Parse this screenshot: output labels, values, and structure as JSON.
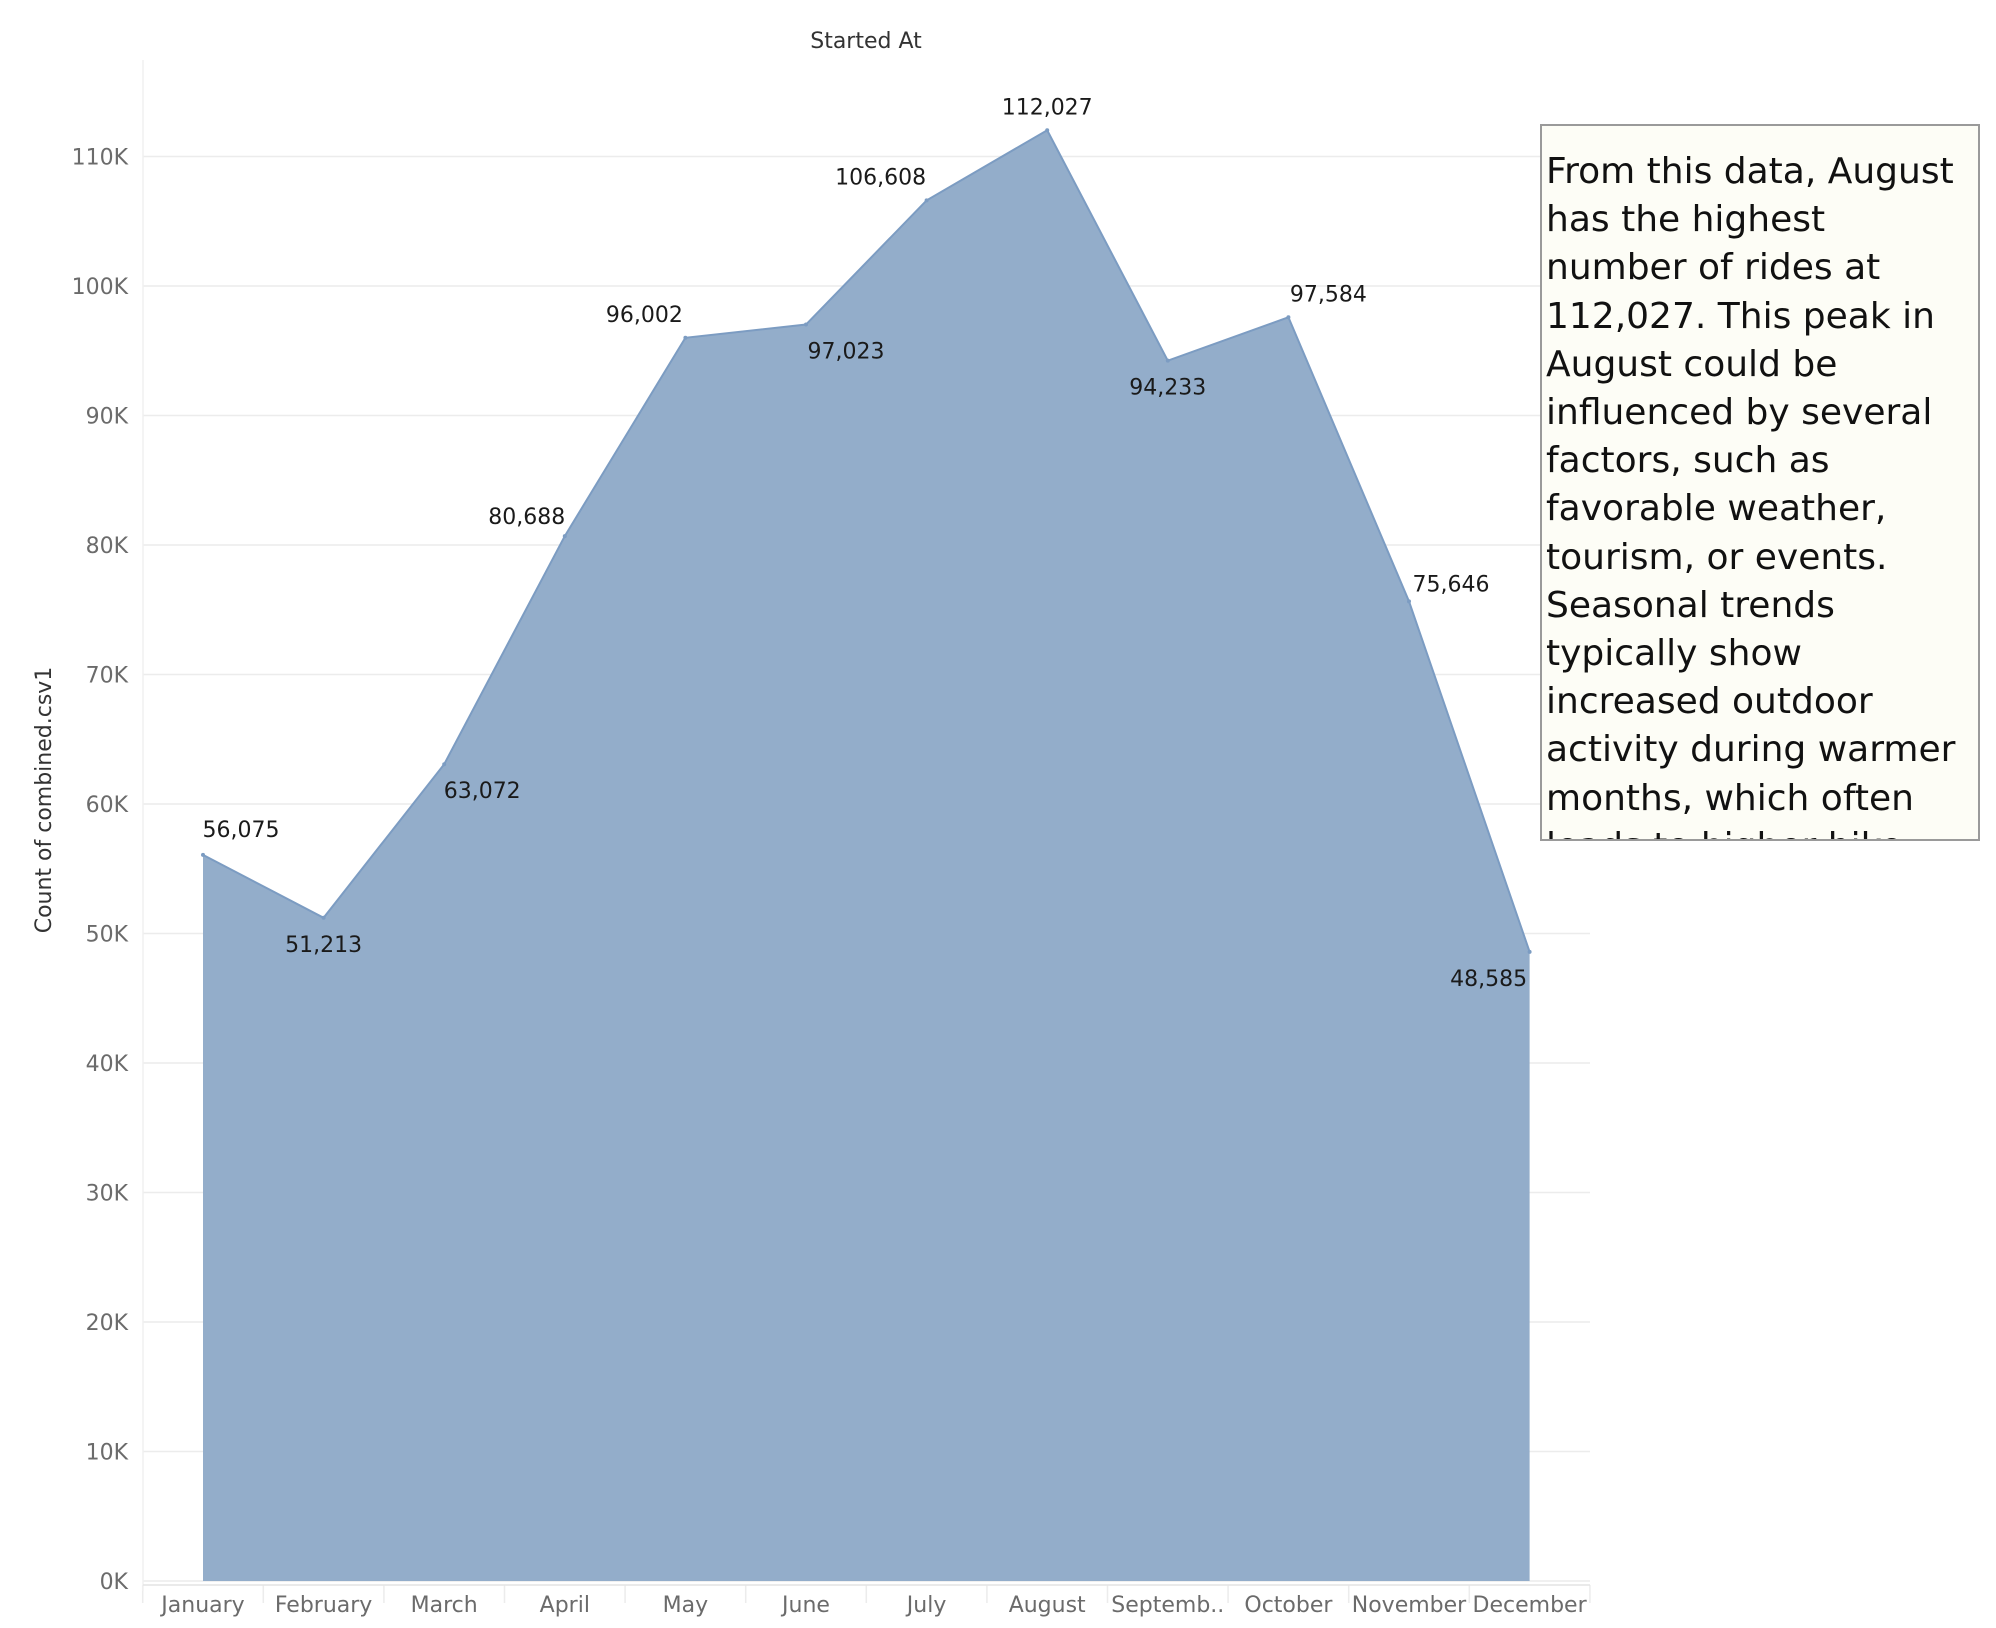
{
  "colors": {
    "area_fill": "#8faac8",
    "area_stroke": "#7c9cc2",
    "gridline": "#ececec",
    "annotation_bg": "#fdfdf6",
    "annotation_border": "#9a9a9a"
  },
  "annotation": {
    "text": "From this data, August has the highest number of rides at 112,027. This peak in August could be influenced by several factors, such as favorable weather, tourism, or events. Seasonal trends typically show increased outdoor activity during warmer months, which often leads to higher bike usage."
  },
  "chart_data": {
    "type": "area",
    "title": "Started At",
    "xlabel": "",
    "ylabel": "Count of combined.csv1",
    "categories": [
      "January",
      "February",
      "March",
      "April",
      "May",
      "June",
      "July",
      "August",
      "September",
      "October",
      "November",
      "December"
    ],
    "category_tick_labels": [
      "January",
      "February",
      "March",
      "April",
      "May",
      "June",
      "July",
      "August",
      "Septemb..",
      "October",
      "November",
      "December"
    ],
    "series": [
      {
        "values": [
          56075,
          51213,
          63072,
          80688,
          96002,
          97023,
          106608,
          112027,
          94233,
          97584,
          75646,
          48585
        ],
        "data_labels": [
          "56,075",
          "51,213",
          "63,072",
          "80,688",
          "96,002",
          "97,023",
          "106,608",
          "112,027",
          "94,233",
          "97,584",
          "75,646",
          "48,585"
        ]
      }
    ],
    "y_ticks": [
      0,
      10000,
      20000,
      30000,
      40000,
      50000,
      60000,
      70000,
      80000,
      90000,
      100000,
      110000
    ],
    "y_tick_labels": [
      "0K",
      "10K",
      "20K",
      "30K",
      "40K",
      "50K",
      "60K",
      "70K",
      "80K",
      "90K",
      "100K",
      "110K"
    ],
    "ylim": [
      0,
      117000
    ],
    "grid": true,
    "legend": "none"
  }
}
